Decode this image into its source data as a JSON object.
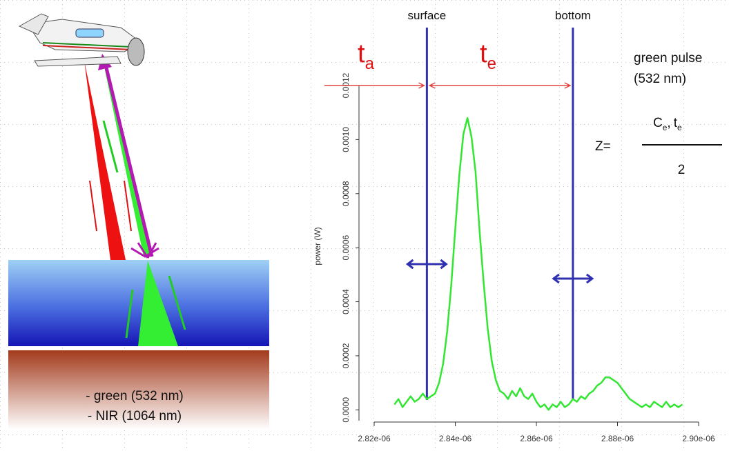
{
  "chart_data": {
    "type": "line",
    "y_label": "power (W)",
    "x": [
      2.825e-06,
      2.826e-06,
      2.827e-06,
      2.828e-06,
      2.829e-06,
      2.83e-06,
      2.831e-06,
      2.832e-06,
      2.833e-06,
      2.834e-06,
      2.835e-06,
      2.836e-06,
      2.837e-06,
      2.838e-06,
      2.839e-06,
      2.84e-06,
      2.841e-06,
      2.842e-06,
      2.843e-06,
      2.844e-06,
      2.845e-06,
      2.846e-06,
      2.847e-06,
      2.848e-06,
      2.849e-06,
      2.85e-06,
      2.851e-06,
      2.852e-06,
      2.853e-06,
      2.854e-06,
      2.855e-06,
      2.856e-06,
      2.857e-06,
      2.858e-06,
      2.859e-06,
      2.86e-06,
      2.861e-06,
      2.862e-06,
      2.863e-06,
      2.864e-06,
      2.865e-06,
      2.866e-06,
      2.867e-06,
      2.868e-06,
      2.869e-06,
      2.87e-06,
      2.871e-06,
      2.872e-06,
      2.873e-06,
      2.874e-06,
      2.875e-06,
      2.876e-06,
      2.877e-06,
      2.878e-06,
      2.879e-06,
      2.88e-06,
      2.881e-06,
      2.882e-06,
      2.883e-06,
      2.884e-06,
      2.885e-06,
      2.886e-06,
      2.887e-06,
      2.888e-06,
      2.889e-06,
      2.89e-06,
      2.891e-06,
      2.892e-06,
      2.893e-06,
      2.894e-06,
      2.895e-06,
      2.896e-06
    ],
    "series": [
      {
        "color": "#33e633",
        "values": [
          2e-05,
          4e-05,
          1e-05,
          3e-05,
          5e-05,
          3e-05,
          4e-05,
          6e-05,
          4e-05,
          5e-05,
          6e-05,
          0.0001,
          0.00017,
          0.00029,
          0.00046,
          0.00067,
          0.00087,
          0.00102,
          0.00108,
          0.00101,
          0.00088,
          0.00066,
          0.00047,
          0.0003,
          0.00018,
          0.00011,
          7e-05,
          6e-05,
          4e-05,
          7e-05,
          5e-05,
          8e-05,
          5e-05,
          4e-05,
          6e-05,
          3e-05,
          1e-05,
          2e-05,
          0.0,
          2e-05,
          1e-05,
          3e-05,
          1e-05,
          2e-05,
          4e-05,
          3e-05,
          5e-05,
          4e-05,
          6e-05,
          7e-05,
          9e-05,
          0.0001,
          0.00012,
          0.00012,
          0.00011,
          0.0001,
          8e-05,
          6e-05,
          4e-05,
          3e-05,
          2e-05,
          1e-05,
          2e-05,
          1e-05,
          3e-05,
          2e-05,
          1e-05,
          3e-05,
          1e-05,
          2e-05,
          1e-05,
          2e-05
        ]
      }
    ],
    "xlim": [
      2.82e-06,
      2.9e-06
    ],
    "xticks": [
      {
        "value": 2.82e-06,
        "label": "2.82e-06"
      },
      {
        "value": 2.84e-06,
        "label": "2.84e-06"
      },
      {
        "value": 2.86e-06,
        "label": "2.86e-06"
      },
      {
        "value": 2.88e-06,
        "label": "2.88e-06"
      },
      {
        "value": 2.9e-06,
        "label": "2.90e-06"
      }
    ],
    "ylim": [
      -4e-05,
      0.0012
    ],
    "yticks": [
      {
        "value": 0,
        "label": "0.0000"
      },
      {
        "value": 0.0002,
        "label": "0.0002"
      },
      {
        "value": 0.0004,
        "label": "0.0004"
      },
      {
        "value": 0.0006,
        "label": "0.0006"
      },
      {
        "value": 0.0008,
        "label": "0.0008"
      },
      {
        "value": 0.001,
        "label": "0.0010"
      },
      {
        "value": 0.0012,
        "label": "0.0012"
      }
    ],
    "markers": [
      {
        "label": "surface",
        "x": 2.833e-06,
        "color": "#3030b0"
      },
      {
        "label": "bottom",
        "x": 2.869e-06,
        "color": "#3030b0"
      }
    ]
  },
  "annotations": {
    "t_a": {
      "symbol": "t",
      "subscript": "a"
    },
    "t_e": {
      "symbol": "t",
      "subscript": "e"
    },
    "pulse": {
      "line1": "green pulse",
      "line2": "(532 nm)"
    },
    "formula": {
      "lhs": "Z=",
      "c": "C",
      "c_sub": "e",
      "sep": ",",
      "t": "t",
      "t_sub": "e",
      "denominator": "2"
    }
  },
  "legend": {
    "line1": "- green (532 nm)",
    "line2": "- NIR (1064 nm)"
  }
}
